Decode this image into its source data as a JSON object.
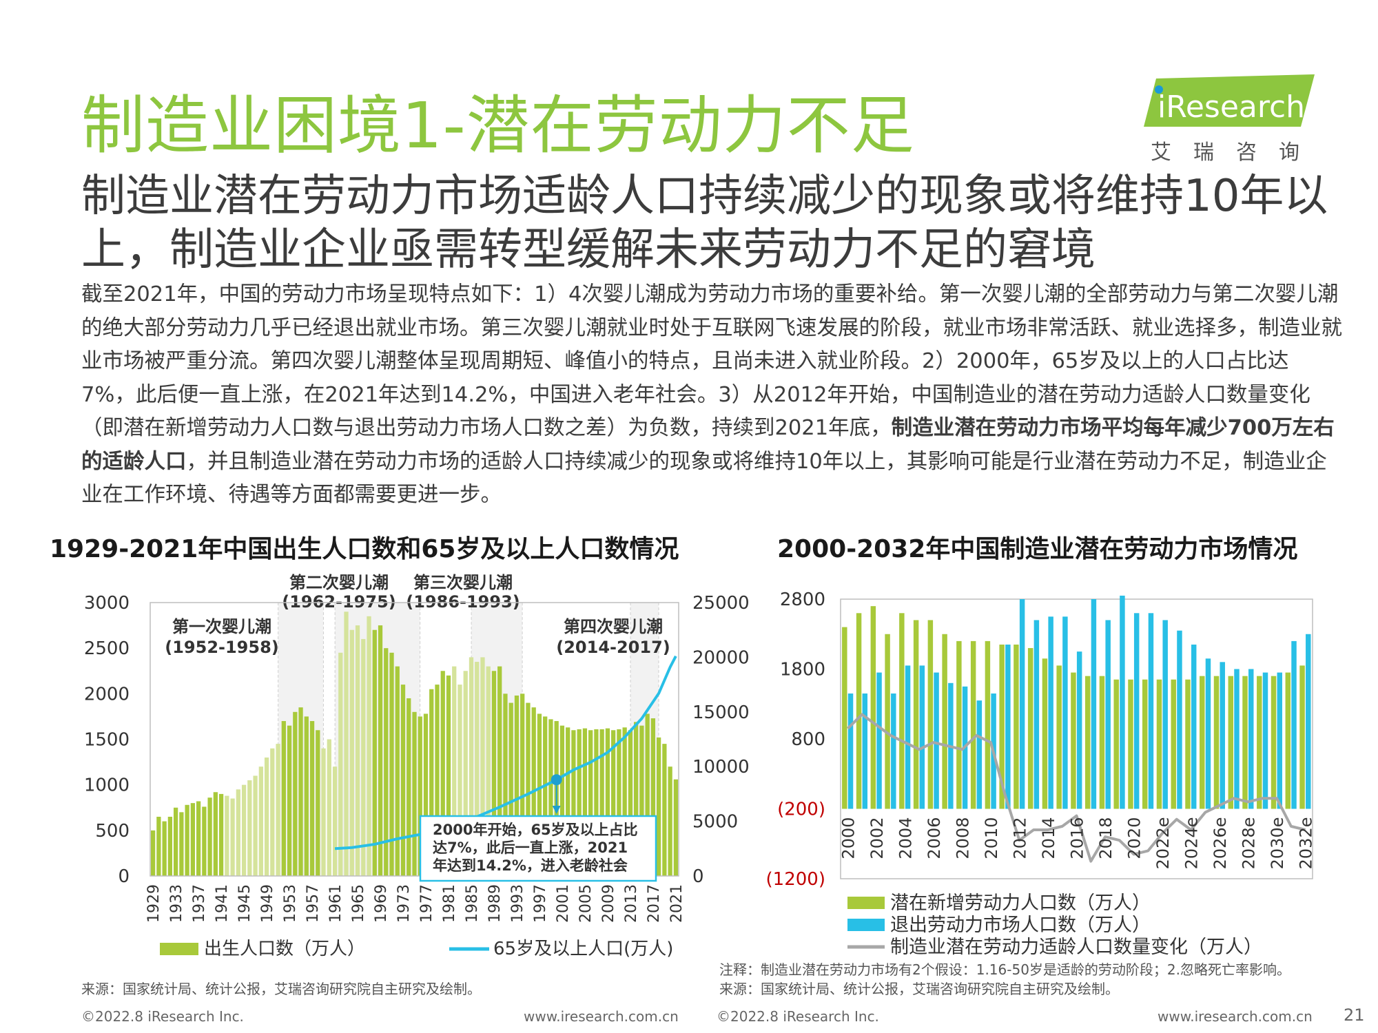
{
  "page": {
    "title": "制造业困境1-潜在劳动力不足",
    "logo": {
      "brand": "iResearch",
      "sub": "艾瑞咨询"
    },
    "subtitle": "制造业潜在劳动力市场适龄人口持续减少的现象或将维持10年以上，制造业企业亟需转型缓解未来劳动力不足的窘境",
    "body_part1": "截至2021年，中国的劳动力市场呈现特点如下：1）4次婴儿潮成为劳动力市场的重要补给。第一次婴儿潮的全部劳动力与第二次婴儿潮的绝大部分劳动力几乎已经退出就业市场。第三次婴儿潮就业时处于互联网飞速发展的阶段，就业市场非常活跃、就业选择多，制造业就业市场被严重分流。第四次婴儿潮整体呈现周期短、峰值小的特点，且尚未进入就业阶段。2）2000年，65岁及以上的人口占比达7%，此后便一直上涨，在2021年达到14.2%，中国进入老年社会。3）从2012年开始，中国制造业的潜在劳动力适龄人口数量变化（即潜在新增劳动力人口数与退出劳动力市场人口数之差）为负数，持续到2021年底，",
    "body_bold": "制造业潜在劳动力市场平均每年减少700万左右的适龄人口",
    "body_part2": "，并且制造业潜在劳动力市场的适龄人口持续减少的现象或将维持10年以上，其影响可能是行业潜在劳动力不足，制造业企业在工作环境、待遇等方面都需要更进一步。",
    "page_number": "21"
  },
  "colors": {
    "green": "#a8c93a",
    "cyan": "#28bfe6",
    "gray": "#a7a7a7",
    "title_green": "#8dc63f"
  },
  "chart1": {
    "source": "来源：国家统计局、统计公报，艾瑞咨询研究院自主研究及绘制。",
    "footer_left": "©2022.8 iResearch Inc.",
    "footer_right": "www.iresearch.com.cn",
    "annotation": [
      "2000年开始，65岁及以上占比",
      "达7%，此后一直上涨，2021",
      "年达到14.2%，进入老龄社会"
    ],
    "booms": [
      {
        "label1": "第一次婴儿潮",
        "label2": "(1952-1958)"
      },
      {
        "label1": "第二次婴儿潮",
        "label2": "(1962-1975)"
      },
      {
        "label1": "第三次婴儿潮",
        "label2": "(1986-1993)"
      },
      {
        "label1": "第四次婴儿潮",
        "label2": "(2014-2017)"
      }
    ]
  },
  "chart2": {
    "note": "注释：制造业潜在劳动力市场有2个假设：1.16-50岁是适龄的劳动阶段；2.忽略死亡率影响。",
    "source": "来源：国家统计局、统计公报，艾瑞咨询研究院自主研究及绘制。",
    "footer_left": "©2022.8 iResearch Inc.",
    "footer_right": "www.iresearch.com.cn"
  },
  "chart_data": [
    {
      "type": "bar",
      "title": "1929-2021年中国出生人口数和65岁及以上人口数情况",
      "x_start": 1929,
      "x_end": 2021,
      "x_ticks": [
        "1929",
        "1933",
        "1937",
        "1941",
        "1945",
        "1949",
        "1953",
        "1957",
        "1961",
        "1965",
        "1969",
        "1973",
        "1977",
        "1981",
        "1985",
        "1989",
        "1993",
        "1997",
        "2001",
        "2005",
        "2009",
        "2013",
        "2017",
        "2021"
      ],
      "ylim_left": [
        0,
        3000
      ],
      "yticks_left": [
        "0",
        "500",
        "1000",
        "1500",
        "2000",
        "2500",
        "3000"
      ],
      "ylim_right": [
        0,
        25000
      ],
      "yticks_right": [
        "0",
        "5000",
        "10000",
        "15000",
        "20000",
        "25000"
      ],
      "boom_ranges": [
        [
          1952,
          1958
        ],
        [
          1962,
          1975
        ],
        [
          1986,
          1993
        ],
        [
          2014,
          2017
        ]
      ],
      "series": [
        {
          "name": "出生人口数（万人）",
          "axis": "left",
          "values": [
            500,
            650,
            600,
            650,
            750,
            700,
            780,
            800,
            820,
            760,
            860,
            920,
            900,
            880,
            850,
            950,
            1000,
            1050,
            1100,
            1200,
            1300,
            1400,
            1450,
            1700,
            1650,
            1800,
            1850,
            1750,
            1700,
            1600,
            1400,
            1500,
            1200,
            2450,
            2900,
            2700,
            2750,
            2600,
            2850,
            2700,
            2750,
            2500,
            2450,
            2300,
            2100,
            1950,
            1800,
            1750,
            1780,
            2050,
            2100,
            2250,
            2200,
            2300,
            2100,
            2250,
            2400,
            2350,
            2400,
            2300,
            2250,
            2300,
            2000,
            1900,
            1980,
            2000,
            1900,
            1850,
            1780,
            1750,
            1720,
            1700,
            1650,
            1630,
            1600,
            1610,
            1620,
            1600,
            1610,
            1610,
            1620,
            1600,
            1610,
            1630,
            1600,
            1690,
            1650,
            1780,
            1730,
            1520,
            1450,
            1200,
            1060
          ]
        },
        {
          "name": "65岁及以上人口(万人)",
          "axis": "right",
          "type": "line",
          "points": [
            [
              1961,
              2500
            ],
            [
              1964,
              2600
            ],
            [
              1968,
              2900
            ],
            [
              1972,
              3400
            ],
            [
              1976,
              3800
            ],
            [
              1980,
              4400
            ],
            [
              1985,
              5200
            ],
            [
              1990,
              6300
            ],
            [
              1995,
              7500
            ],
            [
              2000,
              8800
            ],
            [
              2003,
              9700
            ],
            [
              2006,
              10400
            ],
            [
              2009,
              11300
            ],
            [
              2012,
              12700
            ],
            [
              2015,
              14400
            ],
            [
              2018,
              16700
            ],
            [
              2020,
              19100
            ],
            [
              2021,
              20100
            ]
          ]
        }
      ],
      "legend": "bottom"
    },
    {
      "type": "bar",
      "title": "2000-2032年中国制造业潜在劳动力市场情况",
      "x_start": 2000,
      "x_end": 2032,
      "x_ticks": [
        "2000",
        "2002",
        "2004",
        "2006",
        "2008",
        "2010",
        "2012",
        "2014",
        "2016",
        "2018",
        "2020",
        "2022e",
        "2024e",
        "2026e",
        "2028e",
        "2030e",
        "2032e"
      ],
      "ylim": [
        -1200,
        2800
      ],
      "yticks": [
        "(1200)",
        "(200)",
        "800",
        "1800",
        "2800"
      ],
      "series": [
        {
          "name": "潜在新增劳动力人口数（万人）",
          "values": [
            2400,
            2600,
            2700,
            2300,
            2600,
            2500,
            2500,
            2300,
            2200,
            2200,
            2200,
            2150,
            2150,
            2100,
            1950,
            1850,
            1750,
            1700,
            1700,
            1650,
            1650,
            1650,
            1650,
            1650,
            1650,
            1700,
            1700,
            1700,
            1700,
            1700,
            1700,
            1750,
            1850
          ]
        },
        {
          "name": "退出劳动力市场人口数（万人）",
          "values": [
            1450,
            1450,
            1750,
            1450,
            1850,
            1850,
            1750,
            1600,
            1550,
            1350,
            1450,
            2150,
            2800,
            2500,
            2550,
            2550,
            2050,
            2800,
            2500,
            2850,
            2600,
            2600,
            2500,
            2350,
            2150,
            1950,
            1900,
            1800,
            1800,
            1750,
            1750,
            2200,
            2300
          ]
        },
        {
          "name": "制造业潜在劳动力适龄人口数量变化（万人）",
          "type": "line",
          "values": [
            950,
            1150,
            1000,
            850,
            750,
            650,
            750,
            700,
            650,
            850,
            750,
            0,
            -650,
            -500,
            -500,
            -450,
            -300,
            -950,
            -600,
            -650,
            -850,
            -800,
            -550,
            -350,
            -500,
            -250,
            -150,
            -50,
            -100,
            -50,
            -50,
            -450,
            -500
          ]
        }
      ],
      "legend": "bottom"
    }
  ]
}
